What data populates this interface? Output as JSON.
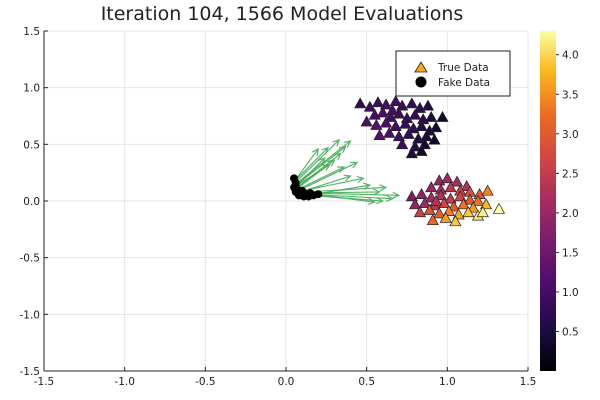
{
  "chart_data": {
    "type": "scatter",
    "title": "Iteration 104, 1566 Model Evaluations",
    "xlabel": "",
    "ylabel": "",
    "xlim": [
      -1.5,
      1.5
    ],
    "ylim": [
      -1.5,
      1.5
    ],
    "x_ticks": [
      "-1.5",
      "-1.0",
      "-0.5",
      "0.0",
      "0.5",
      "1.0",
      "1.5"
    ],
    "y_ticks": [
      "-1.5",
      "-1.0",
      "-0.5",
      "0.0",
      "0.5",
      "1.0",
      "1.5"
    ],
    "grid": true,
    "legend_position": "top-right",
    "colormap": "inferno",
    "color_range": [
      0.0,
      4.3
    ],
    "colorbar_ticks": [
      "0.5",
      "1.0",
      "1.5",
      "2.0",
      "2.5",
      "3.0",
      "3.5",
      "4.0"
    ],
    "series": [
      {
        "name": "True Data",
        "marker": "triangle",
        "color": "#f9a81a",
        "points": [
          {
            "x": 0.46,
            "y": 0.86,
            "c": 0.8
          },
          {
            "x": 0.52,
            "y": 0.83,
            "c": 0.9
          },
          {
            "x": 0.57,
            "y": 0.87,
            "c": 0.9
          },
          {
            "x": 0.62,
            "y": 0.85,
            "c": 1.0
          },
          {
            "x": 0.68,
            "y": 0.88,
            "c": 1.0
          },
          {
            "x": 0.72,
            "y": 0.84,
            "c": 0.9
          },
          {
            "x": 0.78,
            "y": 0.86,
            "c": 0.8
          },
          {
            "x": 0.83,
            "y": 0.82,
            "c": 0.7
          },
          {
            "x": 0.88,
            "y": 0.84,
            "c": 0.6
          },
          {
            "x": 0.55,
            "y": 0.76,
            "c": 1.0
          },
          {
            "x": 0.6,
            "y": 0.78,
            "c": 1.1
          },
          {
            "x": 0.65,
            "y": 0.74,
            "c": 1.0
          },
          {
            "x": 0.7,
            "y": 0.77,
            "c": 0.9
          },
          {
            "x": 0.75,
            "y": 0.73,
            "c": 0.9
          },
          {
            "x": 0.8,
            "y": 0.76,
            "c": 0.8
          },
          {
            "x": 0.85,
            "y": 0.72,
            "c": 0.7
          },
          {
            "x": 0.9,
            "y": 0.74,
            "c": 0.5
          },
          {
            "x": 0.97,
            "y": 0.74,
            "c": 0.3
          },
          {
            "x": 0.5,
            "y": 0.7,
            "c": 1.1
          },
          {
            "x": 0.56,
            "y": 0.67,
            "c": 1.2
          },
          {
            "x": 0.62,
            "y": 0.69,
            "c": 1.1
          },
          {
            "x": 0.68,
            "y": 0.66,
            "c": 1.0
          },
          {
            "x": 0.74,
            "y": 0.68,
            "c": 0.9
          },
          {
            "x": 0.79,
            "y": 0.64,
            "c": 0.8
          },
          {
            "x": 0.84,
            "y": 0.66,
            "c": 0.6
          },
          {
            "x": 0.89,
            "y": 0.62,
            "c": 0.5
          },
          {
            "x": 0.93,
            "y": 0.65,
            "c": 0.4
          },
          {
            "x": 0.58,
            "y": 0.58,
            "c": 1.2
          },
          {
            "x": 0.64,
            "y": 0.6,
            "c": 1.1
          },
          {
            "x": 0.7,
            "y": 0.57,
            "c": 1.0
          },
          {
            "x": 0.76,
            "y": 0.59,
            "c": 0.8
          },
          {
            "x": 0.82,
            "y": 0.55,
            "c": 0.6
          },
          {
            "x": 0.87,
            "y": 0.57,
            "c": 0.5
          },
          {
            "x": 0.92,
            "y": 0.54,
            "c": 0.3
          },
          {
            "x": 0.72,
            "y": 0.5,
            "c": 0.9
          },
          {
            "x": 0.8,
            "y": 0.48,
            "c": 0.6
          },
          {
            "x": 0.86,
            "y": 0.5,
            "c": 0.4
          },
          {
            "x": 0.78,
            "y": 0.42,
            "c": 0.5
          },
          {
            "x": 0.84,
            "y": 0.44,
            "c": 0.3
          },
          {
            "x": 0.66,
            "y": 0.8,
            "c": 1.0
          },
          {
            "x": 0.95,
            "y": 0.18,
            "c": 2.0
          },
          {
            "x": 1.0,
            "y": 0.2,
            "c": 2.1
          },
          {
            "x": 1.06,
            "y": 0.17,
            "c": 2.2
          },
          {
            "x": 1.12,
            "y": 0.13,
            "c": 2.3
          },
          {
            "x": 0.9,
            "y": 0.12,
            "c": 2.0
          },
          {
            "x": 0.96,
            "y": 0.1,
            "c": 2.2
          },
          {
            "x": 1.02,
            "y": 0.12,
            "c": 2.4
          },
          {
            "x": 1.08,
            "y": 0.09,
            "c": 2.6
          },
          {
            "x": 1.14,
            "y": 0.08,
            "c": 2.8
          },
          {
            "x": 1.2,
            "y": 0.06,
            "c": 3.0
          },
          {
            "x": 1.25,
            "y": 0.09,
            "c": 3.4
          },
          {
            "x": 0.78,
            "y": 0.04,
            "c": 1.7
          },
          {
            "x": 0.84,
            "y": 0.06,
            "c": 1.9
          },
          {
            "x": 0.9,
            "y": 0.03,
            "c": 2.1
          },
          {
            "x": 0.96,
            "y": 0.05,
            "c": 2.3
          },
          {
            "x": 1.02,
            "y": 0.02,
            "c": 2.5
          },
          {
            "x": 1.08,
            "y": 0.04,
            "c": 2.7
          },
          {
            "x": 1.14,
            "y": 0.01,
            "c": 3.0
          },
          {
            "x": 1.19,
            "y": 0.0,
            "c": 3.3
          },
          {
            "x": 0.8,
            "y": -0.03,
            "c": 1.9
          },
          {
            "x": 0.86,
            "y": -0.02,
            "c": 2.1
          },
          {
            "x": 0.92,
            "y": -0.04,
            "c": 2.4
          },
          {
            "x": 0.98,
            "y": -0.02,
            "c": 2.7
          },
          {
            "x": 1.04,
            "y": -0.05,
            "c": 3.0
          },
          {
            "x": 1.1,
            "y": -0.03,
            "c": 3.3
          },
          {
            "x": 1.16,
            "y": -0.06,
            "c": 3.6
          },
          {
            "x": 1.24,
            "y": -0.03,
            "c": 3.8
          },
          {
            "x": 0.83,
            "y": -0.1,
            "c": 2.6
          },
          {
            "x": 0.89,
            "y": -0.08,
            "c": 2.9
          },
          {
            "x": 0.95,
            "y": -0.11,
            "c": 3.1
          },
          {
            "x": 1.01,
            "y": -0.09,
            "c": 3.4
          },
          {
            "x": 1.07,
            "y": -0.12,
            "c": 3.7
          },
          {
            "x": 1.13,
            "y": -0.1,
            "c": 3.9
          },
          {
            "x": 1.19,
            "y": -0.13,
            "c": 4.1
          },
          {
            "x": 0.91,
            "y": -0.17,
            "c": 3.2
          },
          {
            "x": 0.99,
            "y": -0.15,
            "c": 3.6
          },
          {
            "x": 1.05,
            "y": -0.18,
            "c": 3.9
          },
          {
            "x": 1.22,
            "y": -0.1,
            "c": 4.2
          },
          {
            "x": 1.32,
            "y": -0.07,
            "c": 4.3
          },
          {
            "x": 0.93,
            "y": 0.0,
            "c": 2.3
          }
        ]
      },
      {
        "name": "Fake Data",
        "marker": "circle",
        "color": "#000000",
        "points": [
          {
            "x": 0.05,
            "y": 0.2
          },
          {
            "x": 0.06,
            "y": 0.16
          },
          {
            "x": 0.05,
            "y": 0.12
          },
          {
            "x": 0.06,
            "y": 0.08
          },
          {
            "x": 0.08,
            "y": 0.05
          },
          {
            "x": 0.11,
            "y": 0.04
          },
          {
            "x": 0.14,
            "y": 0.04
          },
          {
            "x": 0.17,
            "y": 0.05
          },
          {
            "x": 0.2,
            "y": 0.06
          },
          {
            "x": 0.07,
            "y": 0.1
          },
          {
            "x": 0.09,
            "y": 0.07
          },
          {
            "x": 0.12,
            "y": 0.06
          },
          {
            "x": 0.15,
            "y": 0.07
          },
          {
            "x": 0.06,
            "y": 0.14
          },
          {
            "x": 0.1,
            "y": 0.09
          }
        ]
      }
    ],
    "arrows": [
      {
        "x0": 0.07,
        "y0": 0.18,
        "x1": 0.33,
        "y1": 0.54
      },
      {
        "x0": 0.06,
        "y0": 0.15,
        "x1": 0.4,
        "y1": 0.53
      },
      {
        "x0": 0.08,
        "y0": 0.13,
        "x1": 0.34,
        "y1": 0.42
      },
      {
        "x0": 0.05,
        "y0": 0.17,
        "x1": 0.26,
        "y1": 0.47
      },
      {
        "x0": 0.09,
        "y0": 0.1,
        "x1": 0.44,
        "y1": 0.34
      },
      {
        "x0": 0.07,
        "y0": 0.11,
        "x1": 0.3,
        "y1": 0.36
      },
      {
        "x0": 0.06,
        "y0": 0.19,
        "x1": 0.2,
        "y1": 0.46
      },
      {
        "x0": 0.08,
        "y0": 0.16,
        "x1": 0.37,
        "y1": 0.48
      },
      {
        "x0": 0.1,
        "y0": 0.12,
        "x1": 0.36,
        "y1": 0.3
      },
      {
        "x0": 0.11,
        "y0": 0.07,
        "x1": 0.58,
        "y1": 0.08
      },
      {
        "x0": 0.13,
        "y0": 0.06,
        "x1": 0.66,
        "y1": 0.02
      },
      {
        "x0": 0.12,
        "y0": 0.08,
        "x1": 0.62,
        "y1": 0.12
      },
      {
        "x0": 0.15,
        "y0": 0.07,
        "x1": 0.7,
        "y1": 0.05
      },
      {
        "x0": 0.17,
        "y0": 0.06,
        "x1": 0.55,
        "y1": -0.01
      },
      {
        "x0": 0.1,
        "y0": 0.09,
        "x1": 0.48,
        "y1": 0.2
      },
      {
        "x0": 0.09,
        "y0": 0.08,
        "x1": 0.4,
        "y1": 0.22
      },
      {
        "x0": 0.14,
        "y0": 0.05,
        "x1": 0.6,
        "y1": 0.0
      },
      {
        "x0": 0.07,
        "y0": 0.14,
        "x1": 0.27,
        "y1": 0.32
      },
      {
        "x0": 0.18,
        "y0": 0.06,
        "x1": 0.52,
        "y1": 0.14
      },
      {
        "x0": 0.06,
        "y0": 0.12,
        "x1": 0.24,
        "y1": 0.38
      }
    ]
  }
}
